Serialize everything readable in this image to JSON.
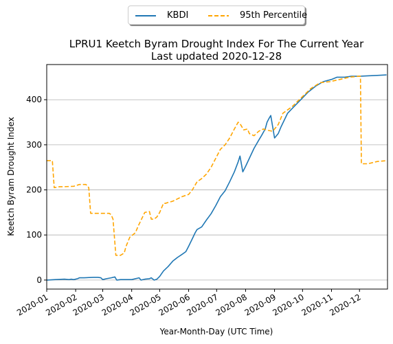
{
  "chart_data": {
    "type": "line",
    "title": "LPRU1 Keetch Byram Drought Index For The Current Year",
    "subtitle": "Last updated 2020-12-28",
    "xlabel": "Year-Month-Day (UTC Time)",
    "ylabel": "Keetch Byram Drought Index",
    "xlim": [
      "2020-01-01",
      "2020-12-31"
    ],
    "ylim": [
      -20,
      478
    ],
    "x_ticks": [
      "2020-01",
      "2020-02",
      "2020-03",
      "2020-04",
      "2020-05",
      "2020-06",
      "2020-07",
      "2020-08",
      "2020-09",
      "2020-10",
      "2020-11",
      "2020-12"
    ],
    "y_ticks": [
      0,
      100,
      200,
      300,
      400
    ],
    "grid": "horizontal",
    "legend_placement": "top-center",
    "series": [
      {
        "name": "KBDI",
        "color": "#1f77b4",
        "style": "solid",
        "x": [
          "2020-01-01",
          "2020-01-10",
          "2020-01-20",
          "2020-01-25",
          "2020-01-27",
          "2020-01-30",
          "2020-02-03",
          "2020-02-05",
          "2020-02-10",
          "2020-02-20",
          "2020-02-25",
          "2020-02-28",
          "2020-03-01",
          "2020-03-05",
          "2020-03-10",
          "2020-03-14",
          "2020-03-16",
          "2020-03-20",
          "2020-04-01",
          "2020-04-09",
          "2020-04-11",
          "2020-04-15",
          "2020-04-20",
          "2020-04-22",
          "2020-04-25",
          "2020-04-28",
          "2020-05-01",
          "2020-05-05",
          "2020-05-10",
          "2020-05-15",
          "2020-05-20",
          "2020-05-25",
          "2020-05-29",
          "2020-06-01",
          "2020-06-05",
          "2020-06-08",
          "2020-06-10",
          "2020-06-15",
          "2020-06-20",
          "2020-06-25",
          "2020-06-30",
          "2020-07-05",
          "2020-07-10",
          "2020-07-15",
          "2020-07-20",
          "2020-07-24",
          "2020-07-26",
          "2020-07-29",
          "2020-08-01",
          "2020-08-05",
          "2020-08-10",
          "2020-08-15",
          "2020-08-18",
          "2020-08-22",
          "2020-08-24",
          "2020-08-26",
          "2020-08-28",
          "2020-09-01",
          "2020-09-05",
          "2020-09-08",
          "2020-09-15",
          "2020-09-22",
          "2020-09-30",
          "2020-10-07",
          "2020-10-15",
          "2020-10-23",
          "2020-11-01",
          "2020-11-07",
          "2020-11-15",
          "2020-11-22",
          "2020-12-01",
          "2020-12-10",
          "2020-12-20",
          "2020-12-30"
        ],
        "values": [
          0,
          1,
          2,
          1,
          2,
          1,
          3,
          5,
          5,
          6,
          6,
          5,
          1,
          3,
          5,
          7,
          0,
          1,
          1,
          5,
          0,
          2,
          3,
          5,
          0,
          2,
          8,
          20,
          30,
          42,
          50,
          57,
          63,
          75,
          92,
          105,
          112,
          118,
          133,
          147,
          165,
          185,
          198,
          218,
          240,
          262,
          275,
          240,
          252,
          270,
          292,
          310,
          320,
          335,
          350,
          358,
          365,
          315,
          325,
          340,
          370,
          385,
          402,
          417,
          430,
          440,
          445,
          450,
          450,
          452,
          452,
          453,
          454,
          455
        ]
      },
      {
        "name": "95th Percentile",
        "color": "#ffa500",
        "style": "dashed",
        "x": [
          "2020-01-01",
          "2020-01-07",
          "2020-01-09",
          "2020-01-15",
          "2020-01-20",
          "2020-01-30",
          "2020-02-05",
          "2020-02-12",
          "2020-02-15",
          "2020-02-17",
          "2020-02-20",
          "2020-03-01",
          "2020-03-08",
          "2020-03-10",
          "2020-03-12",
          "2020-03-15",
          "2020-03-20",
          "2020-03-24",
          "2020-03-26",
          "2020-03-30",
          "2020-04-05",
          "2020-04-08",
          "2020-04-15",
          "2020-04-20",
          "2020-04-22",
          "2020-04-25",
          "2020-04-28",
          "2020-05-01",
          "2020-05-05",
          "2020-05-07",
          "2020-05-10",
          "2020-05-15",
          "2020-05-20",
          "2020-05-25",
          "2020-06-01",
          "2020-06-05",
          "2020-06-10",
          "2020-06-15",
          "2020-06-20",
          "2020-06-25",
          "2020-06-30",
          "2020-07-05",
          "2020-07-10",
          "2020-07-15",
          "2020-07-20",
          "2020-07-24",
          "2020-07-26",
          "2020-07-30",
          "2020-08-03",
          "2020-08-05",
          "2020-08-10",
          "2020-08-15",
          "2020-08-20",
          "2020-08-25",
          "2020-08-30",
          "2020-09-05",
          "2020-09-10",
          "2020-09-20",
          "2020-09-30",
          "2020-10-10",
          "2020-10-20",
          "2020-10-30",
          "2020-11-10",
          "2020-11-20",
          "2020-11-30",
          "2020-12-02",
          "2020-12-03",
          "2020-12-10",
          "2020-12-20",
          "2020-12-31"
        ],
        "values": [
          265,
          265,
          205,
          207,
          207,
          208,
          212,
          212,
          205,
          148,
          148,
          148,
          148,
          145,
          135,
          55,
          55,
          60,
          75,
          95,
          105,
          120,
          150,
          152,
          135,
          135,
          140,
          150,
          170,
          170,
          172,
          175,
          180,
          185,
          190,
          200,
          218,
          225,
          235,
          250,
          270,
          290,
          300,
          315,
          335,
          350,
          347,
          333,
          335,
          325,
          320,
          330,
          335,
          332,
          330,
          345,
          370,
          385,
          405,
          425,
          438,
          440,
          445,
          450,
          452,
          452,
          258,
          258,
          263,
          265
        ]
      }
    ]
  }
}
